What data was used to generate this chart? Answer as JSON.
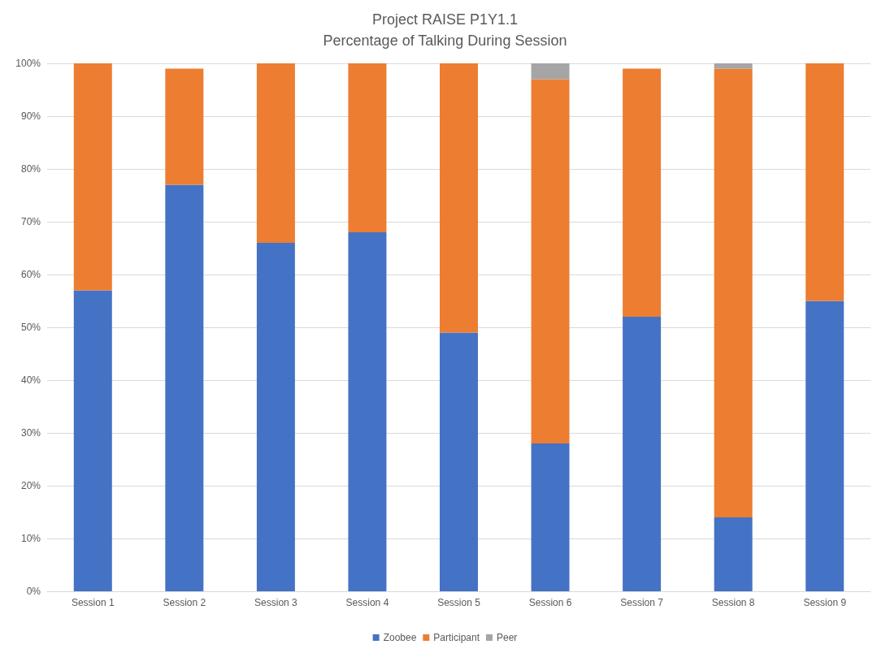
{
  "chart_data": {
    "type": "bar",
    "title": "Project RAISE P1Y1.1\nPercentage of Talking During Session",
    "stacked": true,
    "categories": [
      "Session 1",
      "Session 2",
      "Session 3",
      "Session 4",
      "Session 5",
      "Session 6",
      "Session 7",
      "Session 8",
      "Session 9"
    ],
    "series": [
      {
        "name": "Zoobee",
        "color": "#4472c4",
        "values": [
          57,
          77,
          66,
          68,
          49,
          28,
          52,
          14,
          55
        ]
      },
      {
        "name": "Participant",
        "color": "#ed7d31",
        "values": [
          43,
          22,
          34,
          32,
          51,
          69,
          47,
          85,
          45
        ]
      },
      {
        "name": "Peer",
        "color": "#a5a5a5",
        "values": [
          0,
          0,
          0,
          0,
          0,
          3,
          0,
          1,
          0
        ]
      }
    ],
    "ylim": [
      0,
      100
    ],
    "yticks": [
      {
        "value": 0,
        "label": "0%"
      },
      {
        "value": 10,
        "label": "10%"
      },
      {
        "value": 20,
        "label": "20%"
      },
      {
        "value": 30,
        "label": "30%"
      },
      {
        "value": 40,
        "label": "40%"
      },
      {
        "value": 50,
        "label": "50%"
      },
      {
        "value": 60,
        "label": "60%"
      },
      {
        "value": 70,
        "label": "70%"
      },
      {
        "value": 80,
        "label": "80%"
      },
      {
        "value": 90,
        "label": "90%"
      },
      {
        "value": 100,
        "label": "100%"
      }
    ],
    "grid": "y",
    "legend": "bottom"
  }
}
